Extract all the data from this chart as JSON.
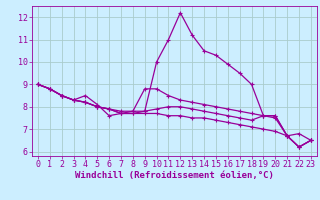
{
  "xlabel": "Windchill (Refroidissement éolien,°C)",
  "background_color": "#cceeff",
  "line_color": "#990099",
  "grid_color": "#aacccc",
  "xlim": [
    -0.5,
    23.5
  ],
  "ylim": [
    5.8,
    12.5
  ],
  "yticks": [
    6,
    7,
    8,
    9,
    10,
    11,
    12
  ],
  "xticks": [
    0,
    1,
    2,
    3,
    4,
    5,
    6,
    7,
    8,
    9,
    10,
    11,
    12,
    13,
    14,
    15,
    16,
    17,
    18,
    19,
    20,
    21,
    22,
    23
  ],
  "series": [
    [
      9.0,
      8.8,
      8.5,
      8.3,
      8.5,
      8.1,
      7.6,
      7.7,
      7.8,
      7.8,
      10.0,
      11.0,
      12.2,
      11.2,
      10.5,
      10.3,
      9.9,
      9.5,
      9.0,
      7.6,
      7.6,
      6.7,
      6.2,
      6.5
    ],
    [
      9.0,
      8.8,
      8.5,
      8.3,
      8.2,
      8.0,
      7.9,
      7.8,
      7.8,
      8.8,
      8.8,
      8.5,
      8.3,
      8.2,
      8.1,
      8.0,
      7.9,
      7.8,
      7.7,
      7.6,
      7.5,
      6.7,
      6.8,
      6.5
    ],
    [
      9.0,
      8.8,
      8.5,
      8.3,
      8.2,
      8.0,
      7.9,
      7.7,
      7.7,
      7.7,
      7.7,
      7.6,
      7.6,
      7.5,
      7.5,
      7.4,
      7.3,
      7.2,
      7.1,
      7.0,
      6.9,
      6.7,
      6.2,
      6.5
    ],
    [
      9.0,
      8.8,
      8.5,
      8.3,
      8.2,
      8.0,
      7.9,
      7.7,
      7.7,
      7.8,
      7.9,
      8.0,
      8.0,
      7.9,
      7.8,
      7.7,
      7.6,
      7.5,
      7.4,
      7.6,
      7.6,
      6.7,
      6.2,
      6.5
    ]
  ],
  "xlabel_fontsize": 6.5,
  "tick_fontsize": 6,
  "line_width": 0.9,
  "marker_size": 3
}
